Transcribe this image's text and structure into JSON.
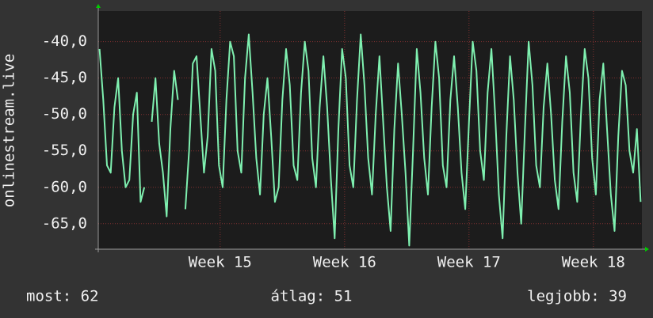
{
  "chart_data": {
    "type": "line",
    "ylabel": "onlinestream.live",
    "x": [
      14.03,
      14.06,
      14.09,
      14.12,
      14.15,
      14.18,
      14.21,
      14.24,
      14.27,
      14.3,
      14.33,
      14.36,
      14.39,
      14.42,
      14.45,
      14.48,
      14.51,
      14.54,
      14.57,
      14.6,
      14.63,
      14.66,
      14.69,
      14.72,
      14.75,
      14.78,
      14.81,
      14.84,
      14.87,
      14.9,
      14.93,
      14.96,
      14.99,
      15.02,
      15.05,
      15.08,
      15.11,
      15.14,
      15.17,
      15.2,
      15.23,
      15.26,
      15.29,
      15.32,
      15.35,
      15.38,
      15.41,
      15.44,
      15.47,
      15.5,
      15.53,
      15.56,
      15.59,
      15.62,
      15.65,
      15.68,
      15.71,
      15.74,
      15.77,
      15.8,
      15.83,
      15.86,
      15.89,
      15.92,
      15.95,
      15.98,
      16.01,
      16.04,
      16.07,
      16.1,
      16.13,
      16.16,
      16.19,
      16.22,
      16.25,
      16.28,
      16.31,
      16.34,
      16.37,
      16.4,
      16.43,
      16.46,
      16.49,
      16.52,
      16.55,
      16.58,
      16.61,
      16.64,
      16.67,
      16.7,
      16.73,
      16.76,
      16.79,
      16.82,
      16.85,
      16.88,
      16.91,
      16.94,
      16.97,
      17.0,
      17.03,
      17.06,
      17.09,
      17.12,
      17.15,
      17.18,
      17.21,
      17.24,
      17.27,
      17.3,
      17.33,
      17.36,
      17.39,
      17.42,
      17.45,
      17.48,
      17.51,
      17.54,
      17.57,
      17.6,
      17.63,
      17.66,
      17.69,
      17.72,
      17.75,
      17.78,
      17.81,
      17.84,
      17.87,
      17.9,
      17.93,
      17.96,
      17.99,
      18.02,
      18.05,
      18.08,
      18.11,
      18.14,
      18.17,
      18.2,
      18.23,
      18.26,
      18.29,
      18.32,
      18.35,
      18.38
    ],
    "series": [
      {
        "color": "#7ff0b0",
        "values": [
          -41,
          -48,
          -57,
          -58,
          -49,
          -45,
          -55,
          -60,
          -59,
          -50,
          -47,
          -62,
          -60,
          null,
          -51,
          -45,
          -54,
          -58,
          -64,
          -52,
          -44,
          -48,
          null,
          -63,
          -55,
          -43,
          -42,
          -50,
          -58,
          -53,
          -41,
          -44,
          -57,
          -60,
          -48,
          -40,
          -42,
          -55,
          -58,
          -45,
          -39,
          -47,
          -56,
          -61,
          -50,
          -45,
          -53,
          -62,
          -60,
          -48,
          -41,
          -46,
          -57,
          -59,
          -47,
          -40,
          -44,
          -56,
          -60,
          -49,
          -42,
          -49,
          -59,
          -67,
          -52,
          -41,
          -45,
          -57,
          -60,
          -48,
          -39,
          -46,
          -56,
          -61,
          -50,
          -42,
          -51,
          -60,
          -66,
          -52,
          -43,
          -50,
          -58,
          -68,
          -55,
          -41,
          -47,
          -56,
          -61,
          -49,
          -40,
          -45,
          -57,
          -60,
          -48,
          -42,
          -49,
          -58,
          -63,
          -51,
          -40,
          -44,
          -55,
          -59,
          -47,
          -41,
          -50,
          -61,
          -67,
          -53,
          -42,
          -48,
          -58,
          -65,
          -52,
          -40,
          -46,
          -57,
          -60,
          -49,
          -43,
          -50,
          -59,
          -63,
          -51,
          -42,
          -47,
          -58,
          -62,
          -50,
          -41,
          -45,
          -56,
          -61,
          -48,
          -43,
          -52,
          -61,
          -66,
          -53,
          -44,
          -46,
          -55,
          -58,
          -52,
          -62
        ]
      }
    ],
    "xlim": [
      14.02,
      18.39
    ],
    "xticks": [
      {
        "value": 15,
        "label": "Week 15"
      },
      {
        "value": 16,
        "label": "Week 16"
      },
      {
        "value": 17,
        "label": "Week 17"
      },
      {
        "value": 18,
        "label": "Week 18"
      }
    ],
    "ylim": [
      -68.5,
      -35.8
    ],
    "yticks": [
      {
        "value": -40,
        "label": "-40,0"
      },
      {
        "value": -45,
        "label": "-45,0"
      },
      {
        "value": -50,
        "label": "-50,0"
      },
      {
        "value": -55,
        "label": "-55,0"
      },
      {
        "value": -60,
        "label": "-60,0"
      },
      {
        "value": -65,
        "label": "-65,0"
      }
    ],
    "grid": true,
    "footer": [
      "most: 62",
      "átlag: 51",
      "legjobb: 39"
    ]
  }
}
